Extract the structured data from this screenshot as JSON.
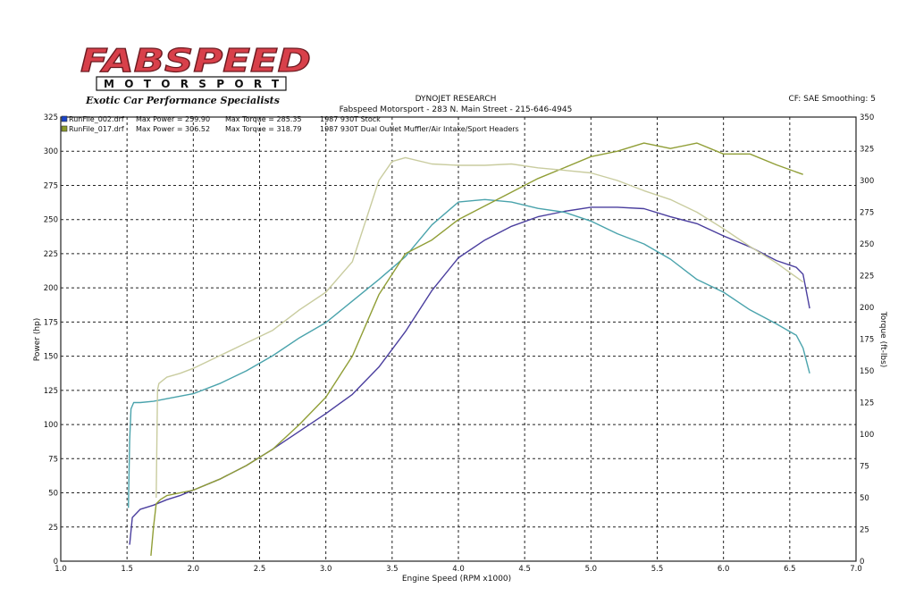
{
  "branding": {
    "logo_text": "FABSPEED",
    "logo_subtext": "MOTORSPORT",
    "tagline": "Exotic Car Performance Specialists"
  },
  "header": {
    "title": "DYNOJET RESEARCH",
    "subtitle": "Fabspeed Motorsport - 283 N. Main Street - 215-646-4945",
    "settings": "CF: SAE  Smoothing: 5"
  },
  "legend": [
    {
      "file": "RunFile_002.drf",
      "power_label": "Max Power = 259.90",
      "torque_label": "Max Torque = 285.35",
      "desc": "1987 930T Stock",
      "color": "#1a44c9"
    },
    {
      "file": "RunFile_017.drf",
      "power_label": "Max Power = 306.52",
      "torque_label": "Max Torque = 318.79",
      "desc": "1987 930T Dual Outlet Muffler/Air Intake/Sport Headers",
      "color": "#8a9a2a"
    }
  ],
  "colors": {
    "stock_power": "#4a3e9e",
    "stock_torque": "#4aa3ac",
    "mod_power": "#909e36",
    "mod_torque": "#c9cc9f",
    "grid": "#222222"
  },
  "chart_data": {
    "type": "line",
    "xlabel": "Engine Speed (RPM x1000)",
    "ylabel": "Power (hp)",
    "y2label": "Torque (ft-lbs)",
    "xlim": [
      1.0,
      7.0
    ],
    "ylim": [
      0,
      325
    ],
    "y2lim": [
      0,
      350
    ],
    "xticks": [
      "1.0",
      "1.5",
      "2.0",
      "2.5",
      "3.0",
      "3.5",
      "4.0",
      "4.5",
      "5.0",
      "5.5",
      "6.0",
      "6.5",
      "7.0"
    ],
    "yticks": [
      "0",
      "25",
      "50",
      "75",
      "100",
      "125",
      "150",
      "175",
      "200",
      "225",
      "250",
      "275",
      "300",
      "325"
    ],
    "y2ticks": [
      "0",
      "25",
      "50",
      "75",
      "100",
      "125",
      "150",
      "175",
      "200",
      "225",
      "250",
      "275",
      "300",
      "325",
      "350"
    ],
    "grid": true,
    "series": [
      {
        "name": "RunFile_002.drf Power",
        "axis": "left",
        "x": [
          1.52,
          1.54,
          1.6,
          1.7,
          1.8,
          1.9,
          2.0,
          2.2,
          2.4,
          2.6,
          2.8,
          3.0,
          3.2,
          3.4,
          3.6,
          3.8,
          4.0,
          4.2,
          4.4,
          4.6,
          4.8,
          5.0,
          5.2,
          5.4,
          5.6,
          5.8,
          6.0,
          6.2,
          6.4,
          6.55,
          6.6,
          6.65
        ],
        "y": [
          12,
          32,
          38,
          41,
          45,
          48,
          52,
          60,
          70,
          82,
          95,
          108,
          122,
          142,
          168,
          198,
          222,
          235,
          245,
          252,
          256,
          259,
          259,
          258,
          252,
          247,
          238,
          230,
          220,
          215,
          210,
          185
        ]
      },
      {
        "name": "RunFile_002.drf Torque",
        "axis": "right",
        "x": [
          1.51,
          1.52,
          1.53,
          1.55,
          1.6,
          1.7,
          1.8,
          2.0,
          2.2,
          2.4,
          2.6,
          2.8,
          3.0,
          3.2,
          3.4,
          3.6,
          3.8,
          4.0,
          4.2,
          4.4,
          4.6,
          4.8,
          5.0,
          5.2,
          5.4,
          5.6,
          5.8,
          6.0,
          6.2,
          6.4,
          6.55,
          6.6,
          6.65
        ],
        "y": [
          42,
          95,
          120,
          125,
          125,
          126,
          128,
          132,
          140,
          150,
          162,
          176,
          188,
          205,
          222,
          240,
          265,
          283,
          285,
          283,
          278,
          275,
          268,
          258,
          250,
          238,
          222,
          212,
          198,
          187,
          178,
          168,
          148
        ]
      },
      {
        "name": "RunFile_017.drf Power",
        "axis": "left",
        "x": [
          1.68,
          1.7,
          1.72,
          1.75,
          1.8,
          2.0,
          2.2,
          2.4,
          2.6,
          2.8,
          3.0,
          3.2,
          3.4,
          3.6,
          3.8,
          4.0,
          4.2,
          4.4,
          4.6,
          4.8,
          5.0,
          5.2,
          5.4,
          5.6,
          5.8,
          6.0,
          6.2,
          6.4,
          6.6
        ],
        "y": [
          4,
          25,
          42,
          45,
          48,
          52,
          60,
          70,
          82,
          100,
          120,
          150,
          195,
          225,
          235,
          250,
          260,
          270,
          280,
          288,
          296,
          300,
          306,
          302,
          306,
          298,
          298,
          290,
          283
        ]
      },
      {
        "name": "RunFile_017.drf Torque",
        "axis": "right",
        "x": [
          1.72,
          1.73,
          1.74,
          1.8,
          1.9,
          2.0,
          2.2,
          2.4,
          2.6,
          2.8,
          3.0,
          3.2,
          3.4,
          3.5,
          3.6,
          3.8,
          4.0,
          4.2,
          4.4,
          4.6,
          4.8,
          5.0,
          5.2,
          5.4,
          5.6,
          5.8,
          6.0,
          6.2,
          6.4,
          6.6
        ],
        "y": [
          50,
          135,
          140,
          145,
          148,
          152,
          162,
          172,
          182,
          198,
          212,
          236,
          300,
          315,
          318,
          313,
          312,
          312,
          313,
          310,
          308,
          306,
          300,
          292,
          285,
          275,
          262,
          248,
          235,
          220
        ]
      }
    ]
  }
}
